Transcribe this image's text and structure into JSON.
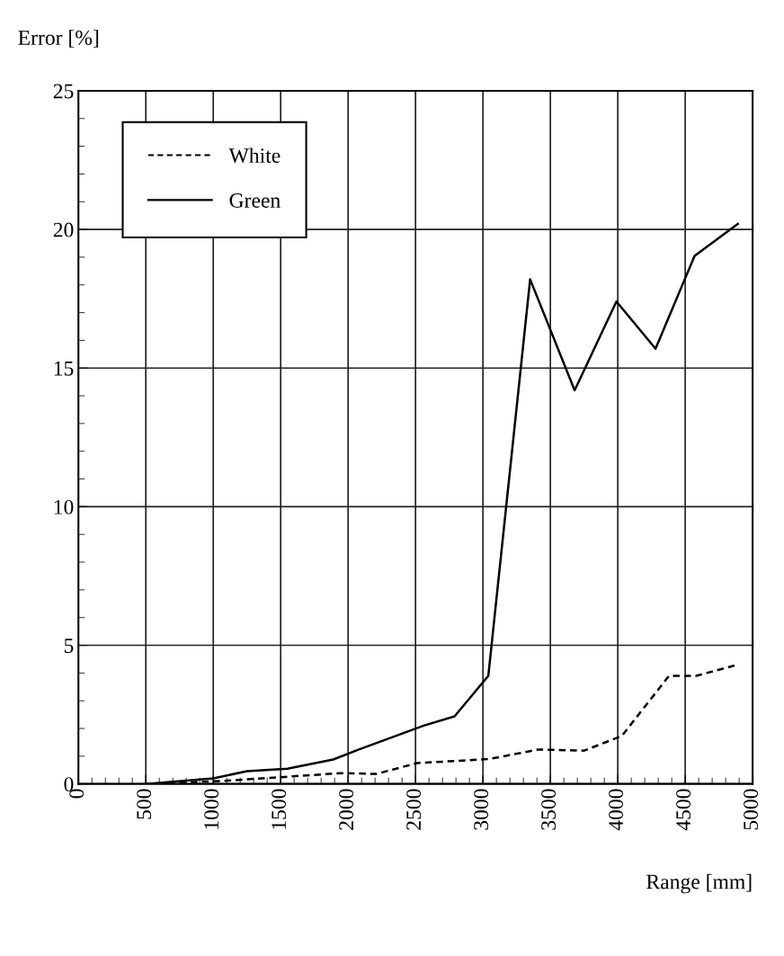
{
  "chart_data": {
    "type": "line",
    "xlabel": "Range [mm]",
    "ylabel": "Error [%]",
    "xlim": [
      0,
      5000
    ],
    "xticks": [
      0,
      500,
      1000,
      1500,
      2000,
      2500,
      3000,
      3500,
      4000,
      4500,
      5000
    ],
    "ylim": [
      0,
      25
    ],
    "yticks": [
      0,
      5,
      10,
      15,
      20,
      25
    ],
    "grid": true,
    "legend": "top left",
    "series": [
      {
        "name": "White",
        "color": "#000000",
        "line_style": "dashed",
        "x": [
          500,
          1050,
          1550,
          1950,
          2210,
          2510,
          3050,
          3410,
          3750,
          4030,
          4380,
          4580,
          4890
        ],
        "values": [
          0,
          0.1,
          0.26,
          0.39,
          0.36,
          0.75,
          0.9,
          1.24,
          1.2,
          1.73,
          3.9,
          3.9,
          4.3
        ]
      },
      {
        "name": "Green",
        "color": "#000000",
        "line_style": "solid",
        "x": [
          500,
          1000,
          1250,
          1550,
          1890,
          2080,
          2560,
          2790,
          3040,
          3350,
          3680,
          3990,
          4280,
          4570,
          4890
        ],
        "values": [
          0,
          0.2,
          0.46,
          0.55,
          0.88,
          1.24,
          2.1,
          2.44,
          3.9,
          18.2,
          14.2,
          17.4,
          15.7,
          19.05,
          20.2
        ]
      }
    ]
  }
}
